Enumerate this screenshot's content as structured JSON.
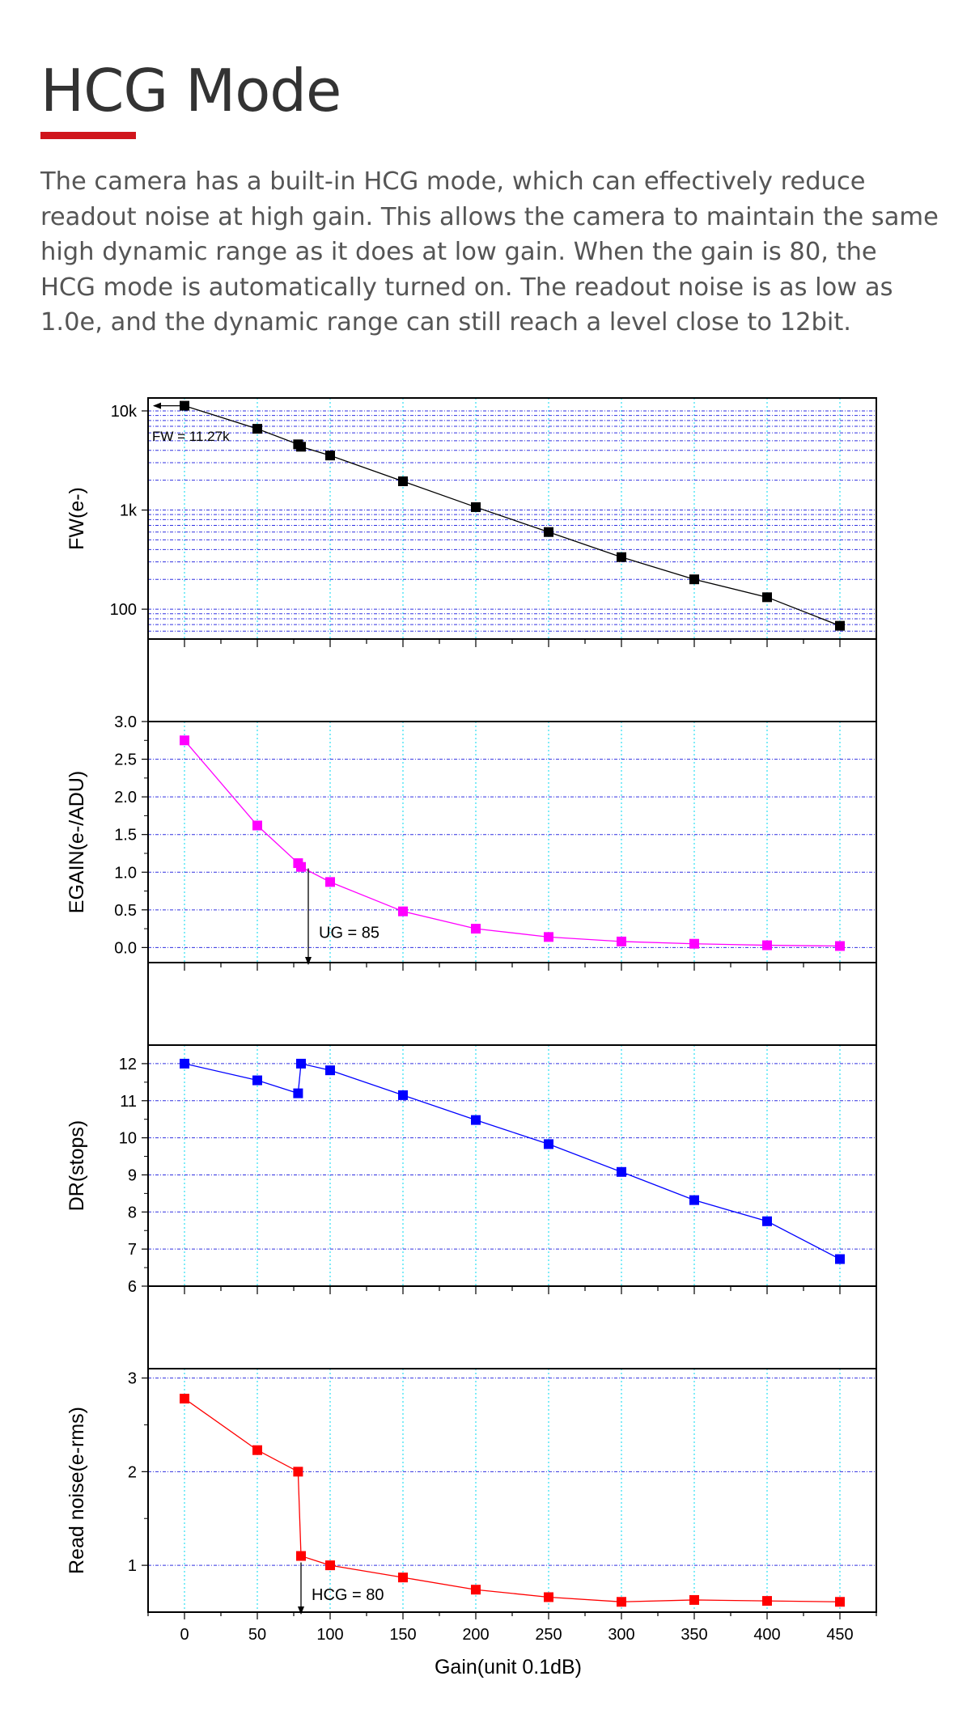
{
  "page": {
    "title": "HCG Mode",
    "accent_color": "#d0151c",
    "description": "The camera has a built-in HCG mode, which can effectively reduce readout noise at high gain.  This allows the camera to maintain the same high dynamic range as it does at low gain. When the gain is 80, the HCG mode is automatically turned on. The readout noise is as low as 1.0e, and the dynamic range can still reach a level close to 12bit."
  },
  "chart_data": {
    "type": "line",
    "xlabel": "Gain(unit 0.1dB)",
    "x_ticks": [
      0,
      50,
      100,
      150,
      200,
      250,
      300,
      350,
      400,
      450
    ],
    "x_tick_labels": [
      "0",
      "50",
      "100",
      "150",
      "200",
      "250",
      "300",
      "350",
      "400",
      "450"
    ],
    "xlim": [
      -25,
      475
    ],
    "panels": [
      {
        "name": "fw",
        "ylabel": "FW(e-)",
        "scale": "log",
        "ylim": [
          50,
          13500
        ],
        "y_ticks": [
          100,
          1000,
          10000
        ],
        "y_tick_labels": [
          "100",
          "1k",
          "10k"
        ],
        "color": "#000000",
        "x": [
          0,
          50,
          78,
          80,
          100,
          150,
          200,
          250,
          300,
          350,
          400,
          450
        ],
        "y": [
          11270,
          6600,
          4600,
          4350,
          3550,
          1950,
          1070,
          600,
          335,
          200,
          132,
          68
        ],
        "annotation": "FW = 11.27k"
      },
      {
        "name": "egain",
        "ylabel": "EGAIN(e-/ADU)",
        "scale": "linear",
        "ylim": [
          -0.2,
          3.0
        ],
        "y_ticks": [
          0.0,
          0.5,
          1.0,
          1.5,
          2.0,
          2.5,
          3.0
        ],
        "y_tick_labels": [
          "0.0",
          "0.5",
          "1.0",
          "1.5",
          "2.0",
          "2.5",
          "3.0"
        ],
        "color": "#ff00ff",
        "x": [
          0,
          50,
          78,
          80,
          100,
          150,
          200,
          250,
          300,
          350,
          400,
          450
        ],
        "y": [
          2.75,
          1.62,
          1.12,
          1.07,
          0.87,
          0.48,
          0.25,
          0.14,
          0.08,
          0.05,
          0.03,
          0.02
        ],
        "annotation": "UG = 85"
      },
      {
        "name": "dr",
        "ylabel": "DR(stops)",
        "scale": "linear",
        "ylim": [
          6,
          12.5
        ],
        "y_ticks": [
          6,
          7,
          8,
          9,
          10,
          11,
          12
        ],
        "y_tick_labels": [
          "6",
          "7",
          "8",
          "9",
          "10",
          "11",
          "12"
        ],
        "color": "#0000ff",
        "x": [
          0,
          50,
          78,
          80,
          100,
          150,
          200,
          250,
          300,
          350,
          400,
          450
        ],
        "y": [
          12.0,
          11.55,
          11.2,
          12.0,
          11.82,
          11.15,
          10.48,
          9.83,
          9.08,
          8.32,
          7.75,
          6.73
        ],
        "annotation": ""
      },
      {
        "name": "read_noise",
        "ylabel": "Read noise(e-rms)",
        "scale": "linear",
        "ylim": [
          0.5,
          3.1
        ],
        "y_ticks": [
          1,
          2,
          3
        ],
        "y_tick_labels": [
          "1",
          "2",
          "3"
        ],
        "color": "#ff0000",
        "x": [
          0,
          50,
          78,
          80,
          100,
          150,
          200,
          250,
          300,
          350,
          400,
          450
        ],
        "y": [
          2.78,
          2.23,
          2.0,
          1.1,
          1.0,
          0.87,
          0.74,
          0.66,
          0.61,
          0.63,
          0.62,
          0.61
        ],
        "annotation": "HCG = 80"
      }
    ]
  }
}
